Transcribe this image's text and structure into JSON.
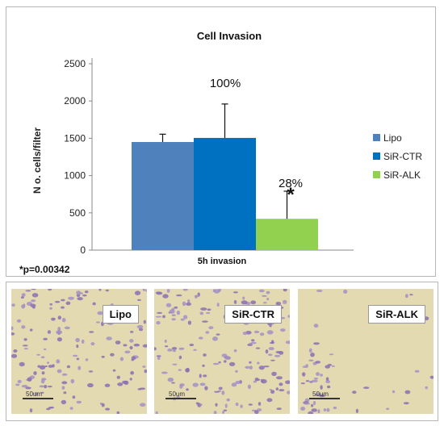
{
  "chart_data": {
    "type": "bar",
    "title": "Cell Invasion",
    "ylabel": "N o. cells/filter",
    "ylim": [
      0,
      2500
    ],
    "yticks": [
      "0",
      "500",
      "1000",
      "1500",
      "2000",
      "2500"
    ],
    "categories": [
      "5h invasion"
    ],
    "series": [
      {
        "name": "Lipo",
        "values": [
          1450
        ],
        "error": [
          105
        ],
        "color": "#4f81bd"
      },
      {
        "name": "SiR-CTR",
        "values": [
          1505
        ],
        "error": [
          455
        ],
        "color": "#0070c0"
      },
      {
        "name": "SiR-ALK",
        "values": [
          420
        ],
        "error": [
          370
        ],
        "color": "#92d050"
      }
    ],
    "annotations": {
      "pct_ctr": "100%",
      "pct_alk": "28%",
      "star": "*",
      "pvalue": "*p=0.00342"
    },
    "legend_position": "right"
  },
  "photos": [
    {
      "label": "Lipo",
      "scale": "50um"
    },
    {
      "label": "SiR-CTR",
      "scale": "50um"
    },
    {
      "label": "SiR-ALK",
      "scale": "50um"
    }
  ]
}
